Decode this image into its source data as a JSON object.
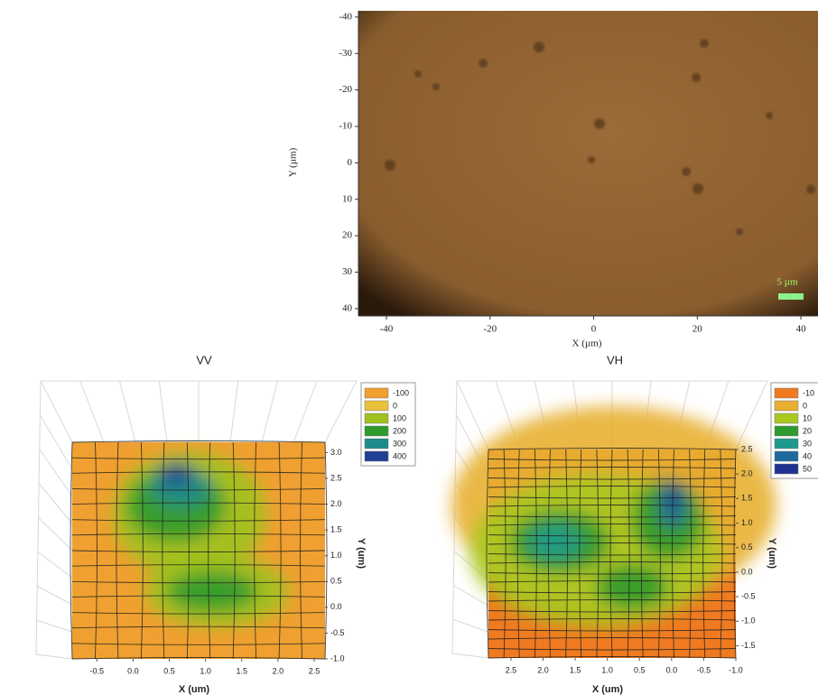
{
  "chart_data": [
    {
      "type": "image",
      "xlabel": "X (µm)",
      "ylabel": "Y (µm)",
      "annotation": "5 µm",
      "xlim": [
        -45.4,
        43.3
      ],
      "xticks": [
        -40,
        -20,
        0,
        20,
        40
      ],
      "ylim": [
        -41.7,
        42
      ],
      "yticks": [
        -40,
        -30,
        -20,
        -10,
        0,
        10,
        20,
        30,
        40
      ]
    },
    {
      "type": "surface",
      "title": "VV",
      "xlabel": "X (um)",
      "ylabel": "Y (um)",
      "xlim": [
        -0.84,
        2.65
      ],
      "xticks": [
        -0.5,
        {
          "value": 0,
          "label": "0.0"
        },
        0.5,
        {
          "value": 1,
          "label": "1.0"
        },
        1.5,
        {
          "value": 2,
          "label": "2.0"
        },
        2.5
      ],
      "ylim": [
        -1.0,
        3.2
      ],
      "yticks": [
        {
          "value": 3,
          "label": "3.0"
        },
        2.5,
        {
          "value": 2,
          "label": "2.0"
        },
        1.5,
        {
          "value": 1,
          "label": "1.0"
        },
        0.5,
        {
          "value": 0,
          "label": "0.0"
        },
        -0.5,
        {
          "value": -1,
          "label": "-1.0"
        }
      ],
      "legend": [
        {
          "name": "-100",
          "color": "#f0a030"
        },
        {
          "name": "0",
          "color": "#e8c23a"
        },
        {
          "name": "100",
          "color": "#9fc21e"
        },
        {
          "name": "200",
          "color": "#2e9a2e"
        },
        {
          "name": "300",
          "color": "#1e8c8c"
        },
        {
          "name": "400",
          "color": "#1e3f94"
        }
      ]
    },
    {
      "type": "surface",
      "title": "VH",
      "xlabel": "X (um)",
      "ylabel": "Y (um)",
      "xlim": [
        2.85,
        -1.0
      ],
      "xticks": [
        2.5,
        {
          "value": 2,
          "label": "2.0"
        },
        1.5,
        {
          "value": 1,
          "label": "1.0"
        },
        0.5,
        {
          "value": 0,
          "label": "0.0"
        },
        -0.5,
        {
          "value": -1,
          "label": "-1.0"
        }
      ],
      "ylim": [
        -1.75,
        2.5
      ],
      "yticks": [
        -1.5,
        {
          "value": -1,
          "label": "-1.0"
        },
        -0.5,
        {
          "value": 0,
          "label": "0.0"
        },
        0.5,
        {
          "value": 1,
          "label": "1.0"
        },
        1.5,
        {
          "value": 2,
          "label": "2.0"
        },
        2.5
      ],
      "legend": [
        {
          "name": "-10",
          "color": "#f07a20"
        },
        {
          "name": "0",
          "color": "#e8b030"
        },
        {
          "name": "10",
          "color": "#a8c820"
        },
        {
          "name": "20",
          "color": "#2e9a2e"
        },
        {
          "name": "30",
          "color": "#1e9a8c"
        },
        {
          "name": "40",
          "color": "#1e6aa0"
        },
        {
          "name": "50",
          "color": "#1e3090"
        }
      ]
    }
  ]
}
